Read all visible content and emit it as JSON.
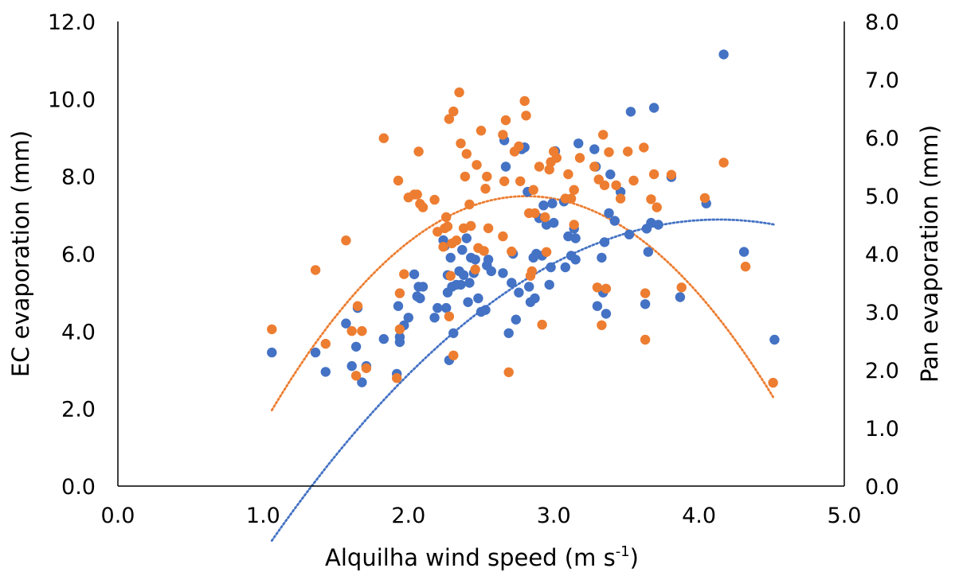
{
  "chart_data": {
    "type": "scatter",
    "title": "",
    "xlabel": {
      "main": "Alquilha wind speed (m s",
      "sup": "-1",
      "end": ")"
    },
    "ylabel": "EC evaporation  (mm)",
    "y2label": "Pan evaporation  (mm)",
    "xlim": [
      0,
      5
    ],
    "ylim": [
      0,
      12
    ],
    "y2lim": [
      0,
      8
    ],
    "x_ticks": [
      "0.0",
      "1.0",
      "2.0",
      "3.0",
      "4.0",
      "5.0"
    ],
    "y_ticks": [
      "0.0",
      "2.0",
      "4.0",
      "6.0",
      "8.0",
      "10.0",
      "12.0"
    ],
    "y2_ticks": [
      "0.0",
      "1.0",
      "2.0",
      "3.0",
      "4.0",
      "5.0",
      "6.0",
      "7.0",
      "8.0"
    ],
    "grid": false,
    "legend": "none",
    "colors": {
      "ec": "#4472c4",
      "pan": "#ed7d31"
    },
    "series": [
      {
        "axis": "left",
        "color": "#4472c4",
        "points": [
          [
            1.06,
            3.45
          ],
          [
            1.36,
            3.45
          ],
          [
            1.43,
            2.95
          ],
          [
            1.57,
            4.2
          ],
          [
            1.61,
            3.1
          ],
          [
            1.64,
            3.6
          ],
          [
            1.65,
            4.6
          ],
          [
            1.68,
            2.68
          ],
          [
            1.71,
            3.1
          ],
          [
            1.83,
            3.8
          ],
          [
            1.92,
            2.9
          ],
          [
            1.93,
            4.65
          ],
          [
            1.94,
            3.72
          ],
          [
            1.94,
            3.85
          ],
          [
            1.97,
            4.15
          ],
          [
            2.0,
            4.35
          ],
          [
            2.04,
            5.47
          ],
          [
            2.06,
            4.9
          ],
          [
            2.07,
            5.15
          ],
          [
            2.08,
            4.85
          ],
          [
            2.1,
            5.15
          ],
          [
            2.18,
            4.35
          ],
          [
            2.2,
            4.6
          ],
          [
            2.24,
            6.35
          ],
          [
            2.25,
            6.2
          ],
          [
            2.26,
            4.6
          ],
          [
            2.27,
            5.0
          ],
          [
            2.27,
            5.45
          ],
          [
            2.28,
            3.25
          ],
          [
            2.29,
            5.9
          ],
          [
            2.3,
            5.15
          ],
          [
            2.31,
            3.95
          ],
          [
            2.33,
            5.2
          ],
          [
            2.35,
            5.55
          ],
          [
            2.36,
            5.2
          ],
          [
            2.37,
            6.1
          ],
          [
            2.38,
            5.45
          ],
          [
            2.4,
            6.4
          ],
          [
            2.41,
            4.75
          ],
          [
            2.42,
            5.25
          ],
          [
            2.43,
            5.9
          ],
          [
            2.45,
            5.5
          ],
          [
            2.46,
            5.85
          ],
          [
            2.48,
            4.85
          ],
          [
            2.5,
            4.5
          ],
          [
            2.53,
            4.55
          ],
          [
            2.54,
            5.7
          ],
          [
            2.55,
            5.85
          ],
          [
            2.57,
            5.55
          ],
          [
            2.65,
            5.5
          ],
          [
            2.66,
            8.93
          ],
          [
            2.67,
            8.25
          ],
          [
            2.69,
            3.95
          ],
          [
            2.71,
            5.25
          ],
          [
            2.72,
            6.0
          ],
          [
            2.74,
            4.3
          ],
          [
            2.76,
            5.0
          ],
          [
            2.78,
            8.7
          ],
          [
            2.8,
            8.75
          ],
          [
            2.82,
            7.6
          ],
          [
            2.83,
            5.15
          ],
          [
            2.84,
            4.75
          ],
          [
            2.86,
            5.9
          ],
          [
            2.87,
            4.85
          ],
          [
            2.88,
            6.0
          ],
          [
            2.9,
            6.92
          ],
          [
            2.92,
            5.95
          ],
          [
            2.93,
            7.25
          ],
          [
            2.95,
            6.75
          ],
          [
            2.97,
            5.2
          ],
          [
            2.98,
            5.65
          ],
          [
            2.99,
            7.3
          ],
          [
            3.0,
            6.8
          ],
          [
            3.01,
            8.65
          ],
          [
            3.07,
            7.35
          ],
          [
            3.08,
            5.65
          ],
          [
            3.1,
            6.45
          ],
          [
            3.12,
            5.95
          ],
          [
            3.14,
            6.65
          ],
          [
            3.15,
            6.4
          ],
          [
            3.15,
            5.85
          ],
          [
            3.17,
            8.85
          ],
          [
            3.28,
            8.7
          ],
          [
            3.29,
            8.25
          ],
          [
            3.3,
            4.65
          ],
          [
            3.33,
            5.9
          ],
          [
            3.34,
            5.0
          ],
          [
            3.35,
            6.3
          ],
          [
            3.36,
            4.45
          ],
          [
            3.38,
            7.05
          ],
          [
            3.39,
            8.05
          ],
          [
            3.42,
            6.85
          ],
          [
            3.46,
            7.6
          ],
          [
            3.52,
            6.5
          ],
          [
            3.53,
            9.67
          ],
          [
            3.63,
            4.7
          ],
          [
            3.64,
            6.65
          ],
          [
            3.65,
            6.05
          ],
          [
            3.67,
            6.8
          ],
          [
            3.69,
            9.77
          ],
          [
            3.72,
            6.75
          ],
          [
            3.81,
            7.98
          ],
          [
            3.87,
            4.88
          ],
          [
            4.05,
            7.3
          ],
          [
            4.17,
            11.15
          ],
          [
            4.31,
            6.05
          ],
          [
            4.52,
            3.78
          ]
        ]
      },
      {
        "axis": "right",
        "color": "#ed7d31",
        "points": [
          [
            1.06,
            2.7
          ],
          [
            1.36,
            3.72
          ],
          [
            1.43,
            2.45
          ],
          [
            1.57,
            4.23
          ],
          [
            1.61,
            2.67
          ],
          [
            1.64,
            1.9
          ],
          [
            1.65,
            3.1
          ],
          [
            1.68,
            2.67
          ],
          [
            1.71,
            2.03
          ],
          [
            1.83,
            5.99
          ],
          [
            1.92,
            1.86
          ],
          [
            1.93,
            5.26
          ],
          [
            1.94,
            3.32
          ],
          [
            1.94,
            2.7
          ],
          [
            1.97,
            3.65
          ],
          [
            2.0,
            4.97
          ],
          [
            2.04,
            5.02
          ],
          [
            2.06,
            5.02
          ],
          [
            2.07,
            5.76
          ],
          [
            2.08,
            4.86
          ],
          [
            2.1,
            4.8
          ],
          [
            2.18,
            4.93
          ],
          [
            2.2,
            4.38
          ],
          [
            2.24,
            4.12
          ],
          [
            2.25,
            4.44
          ],
          [
            2.26,
            4.63
          ],
          [
            2.27,
            4.47
          ],
          [
            2.28,
            6.32
          ],
          [
            2.28,
            2.92
          ],
          [
            2.29,
            3.62
          ],
          [
            2.3,
            4.18
          ],
          [
            2.31,
            6.45
          ],
          [
            2.31,
            2.25
          ],
          [
            2.33,
            4.23
          ],
          [
            2.35,
            6.78
          ],
          [
            2.36,
            5.9
          ],
          [
            2.38,
            4.44
          ],
          [
            2.39,
            5.33
          ],
          [
            2.4,
            5.72
          ],
          [
            2.42,
            4.85
          ],
          [
            2.43,
            4.48
          ],
          [
            2.46,
            3.73
          ],
          [
            2.47,
            5.53
          ],
          [
            2.48,
            4.1
          ],
          [
            2.5,
            6.12
          ],
          [
            2.52,
            4.05
          ],
          [
            2.53,
            5.12
          ],
          [
            2.54,
            5.33
          ],
          [
            2.55,
            4.44
          ],
          [
            2.65,
            4.3
          ],
          [
            2.65,
            6.05
          ],
          [
            2.66,
            5.25
          ],
          [
            2.67,
            6.3
          ],
          [
            2.69,
            1.96
          ],
          [
            2.71,
            4.04
          ],
          [
            2.73,
            5.76
          ],
          [
            2.76,
            5.85
          ],
          [
            2.77,
            5.25
          ],
          [
            2.8,
            6.63
          ],
          [
            2.81,
            6.38
          ],
          [
            2.83,
            4.7
          ],
          [
            2.84,
            3.62
          ],
          [
            2.85,
            3.7
          ],
          [
            2.86,
            5.1
          ],
          [
            2.87,
            4.7
          ],
          [
            2.9,
            5.5
          ],
          [
            2.92,
            2.78
          ],
          [
            2.94,
            4.63
          ],
          [
            2.95,
            4.03
          ],
          [
            2.97,
            5.45
          ],
          [
            2.98,
            5.58
          ],
          [
            3.0,
            5.76
          ],
          [
            3.02,
            5.65
          ],
          [
            3.08,
            4.95
          ],
          [
            3.1,
            5.37
          ],
          [
            3.12,
            4.95
          ],
          [
            3.14,
            5.1
          ],
          [
            3.14,
            4.5
          ],
          [
            3.18,
            5.65
          ],
          [
            3.28,
            5.5
          ],
          [
            3.3,
            3.42
          ],
          [
            3.31,
            5.28
          ],
          [
            3.33,
            2.77
          ],
          [
            3.34,
            6.05
          ],
          [
            3.35,
            5.18
          ],
          [
            3.36,
            3.4
          ],
          [
            3.38,
            5.75
          ],
          [
            3.43,
            5.18
          ],
          [
            3.46,
            4.95
          ],
          [
            3.51,
            5.76
          ],
          [
            3.55,
            5.26
          ],
          [
            3.62,
            5.83
          ],
          [
            3.63,
            3.32
          ],
          [
            3.63,
            2.52
          ],
          [
            3.67,
            4.94
          ],
          [
            3.69,
            5.37
          ],
          [
            3.71,
            4.8
          ],
          [
            3.81,
            5.36
          ],
          [
            3.88,
            3.42
          ],
          [
            4.04,
            4.96
          ],
          [
            4.17,
            5.57
          ],
          [
            4.32,
            3.78
          ],
          [
            4.51,
            1.78
          ]
        ]
      }
    ],
    "trendlines": [
      {
        "axis": "left",
        "color": "#4472c4",
        "coef": [
          -0.8764,
          7.25,
          -8.11
        ],
        "x_range": [
          1.06,
          4.52
        ]
      },
      {
        "axis": "right",
        "color": "#ed7d31",
        "coef": [
          -1.2,
          6.75,
          -4.5
        ],
        "x_range": [
          1.06,
          4.51
        ]
      }
    ]
  }
}
